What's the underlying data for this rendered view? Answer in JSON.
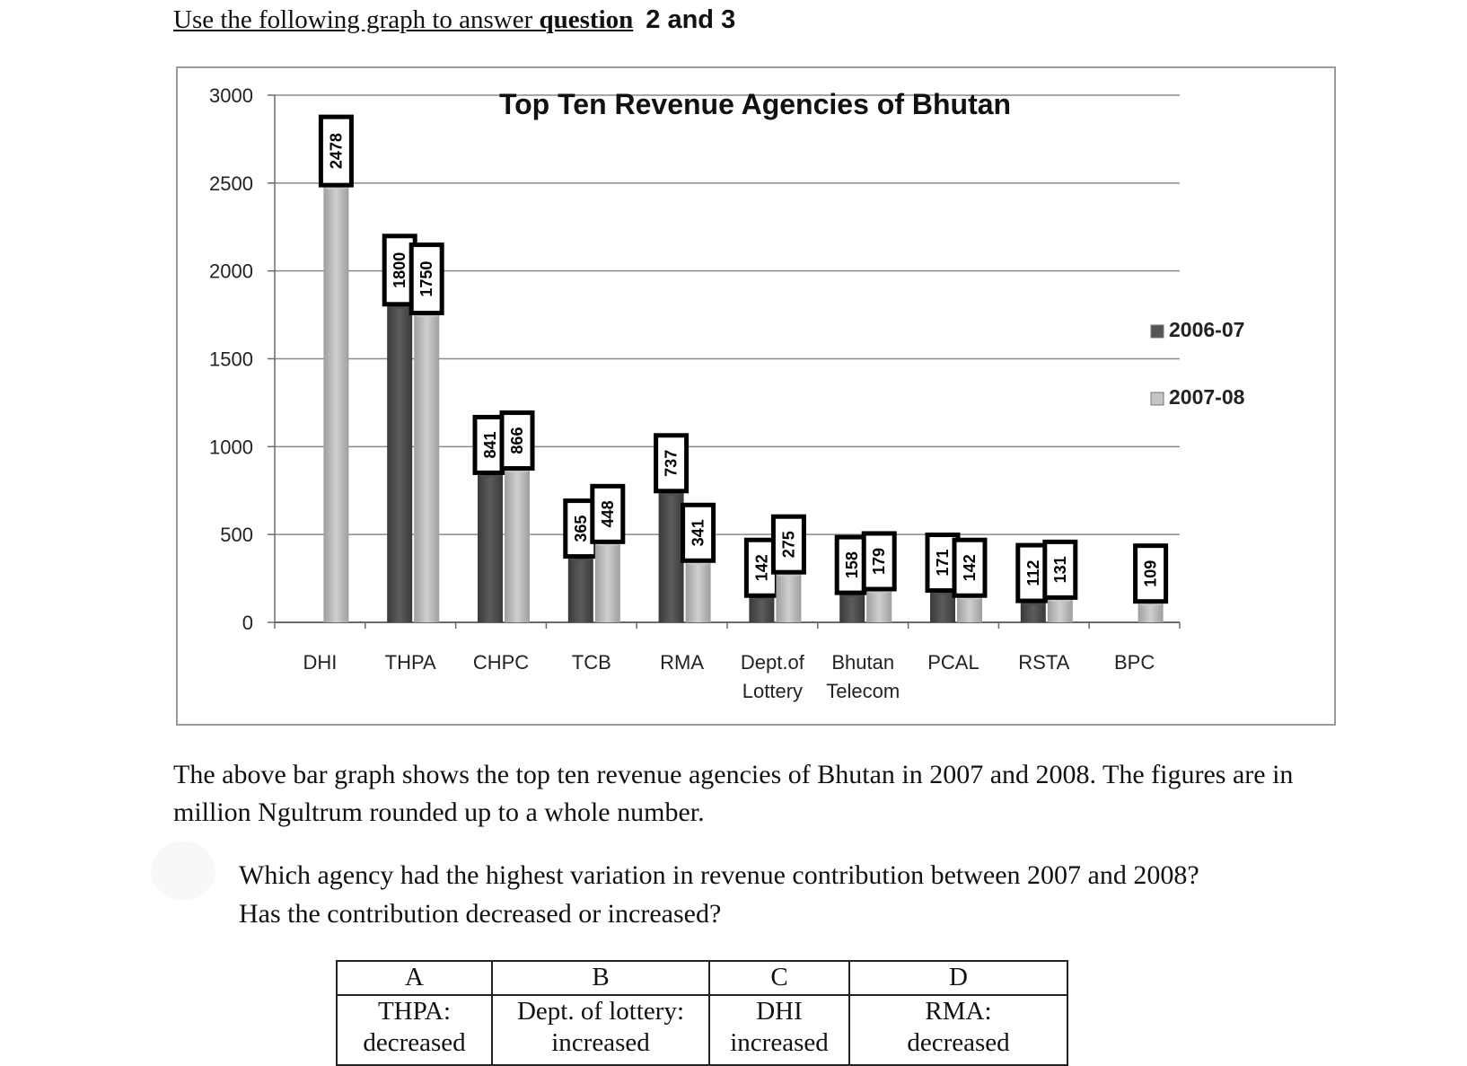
{
  "header": {
    "lead": "Use the following graph to answer ",
    "strong": "question",
    "numbers": "2 and 3"
  },
  "chart_data": {
    "type": "bar",
    "title": "Top Ten Revenue Agencies of Bhutan",
    "categories": [
      "DHI",
      "THPA",
      "CHPC",
      "TCB",
      "RMA",
      "Dept.of Lottery",
      "Bhutan Telecom",
      "PCAL",
      "RSTA",
      "BPC"
    ],
    "category_lines": [
      [
        "DHI"
      ],
      [
        "THPA"
      ],
      [
        "CHPC"
      ],
      [
        "TCB"
      ],
      [
        "RMA"
      ],
      [
        "Dept.of",
        "Lottery"
      ],
      [
        "Bhutan",
        "Telecom"
      ],
      [
        "PCAL"
      ],
      [
        "RSTA"
      ],
      [
        "BPC"
      ]
    ],
    "series": [
      {
        "name": "2006-07",
        "values": [
          null,
          1800,
          841,
          365,
          737,
          142,
          158,
          171,
          112,
          null
        ],
        "color": "#4a4a4a"
      },
      {
        "name": "2007-08",
        "values": [
          2478,
          1750,
          866,
          448,
          341,
          275,
          179,
          142,
          131,
          109
        ],
        "color": "#b3b3b3"
      }
    ],
    "y_ticks": [
      0,
      500,
      1000,
      1500,
      2000,
      2500,
      3000
    ],
    "ylim": [
      0,
      3000
    ],
    "grid": true,
    "legend_position": "right"
  },
  "description": "The above bar graph shows the top ten revenue agencies of Bhutan in 2007 and 2008. The figures are in million Ngultrum rounded up to a whole number.",
  "question": {
    "line1": "Which agency had the highest variation in revenue contribution between 2007 and 2008?",
    "line2": "Has the contribution decreased or increased?"
  },
  "options": [
    {
      "letter": "A",
      "line1": "THPA:",
      "line2": "decreased"
    },
    {
      "letter": "B",
      "line1": "Dept. of lottery:",
      "line2": "increased"
    },
    {
      "letter": "C",
      "line1": "DHI",
      "line2": "increased"
    },
    {
      "letter": "D",
      "line1": "RMA:",
      "line2": "decreased"
    }
  ]
}
